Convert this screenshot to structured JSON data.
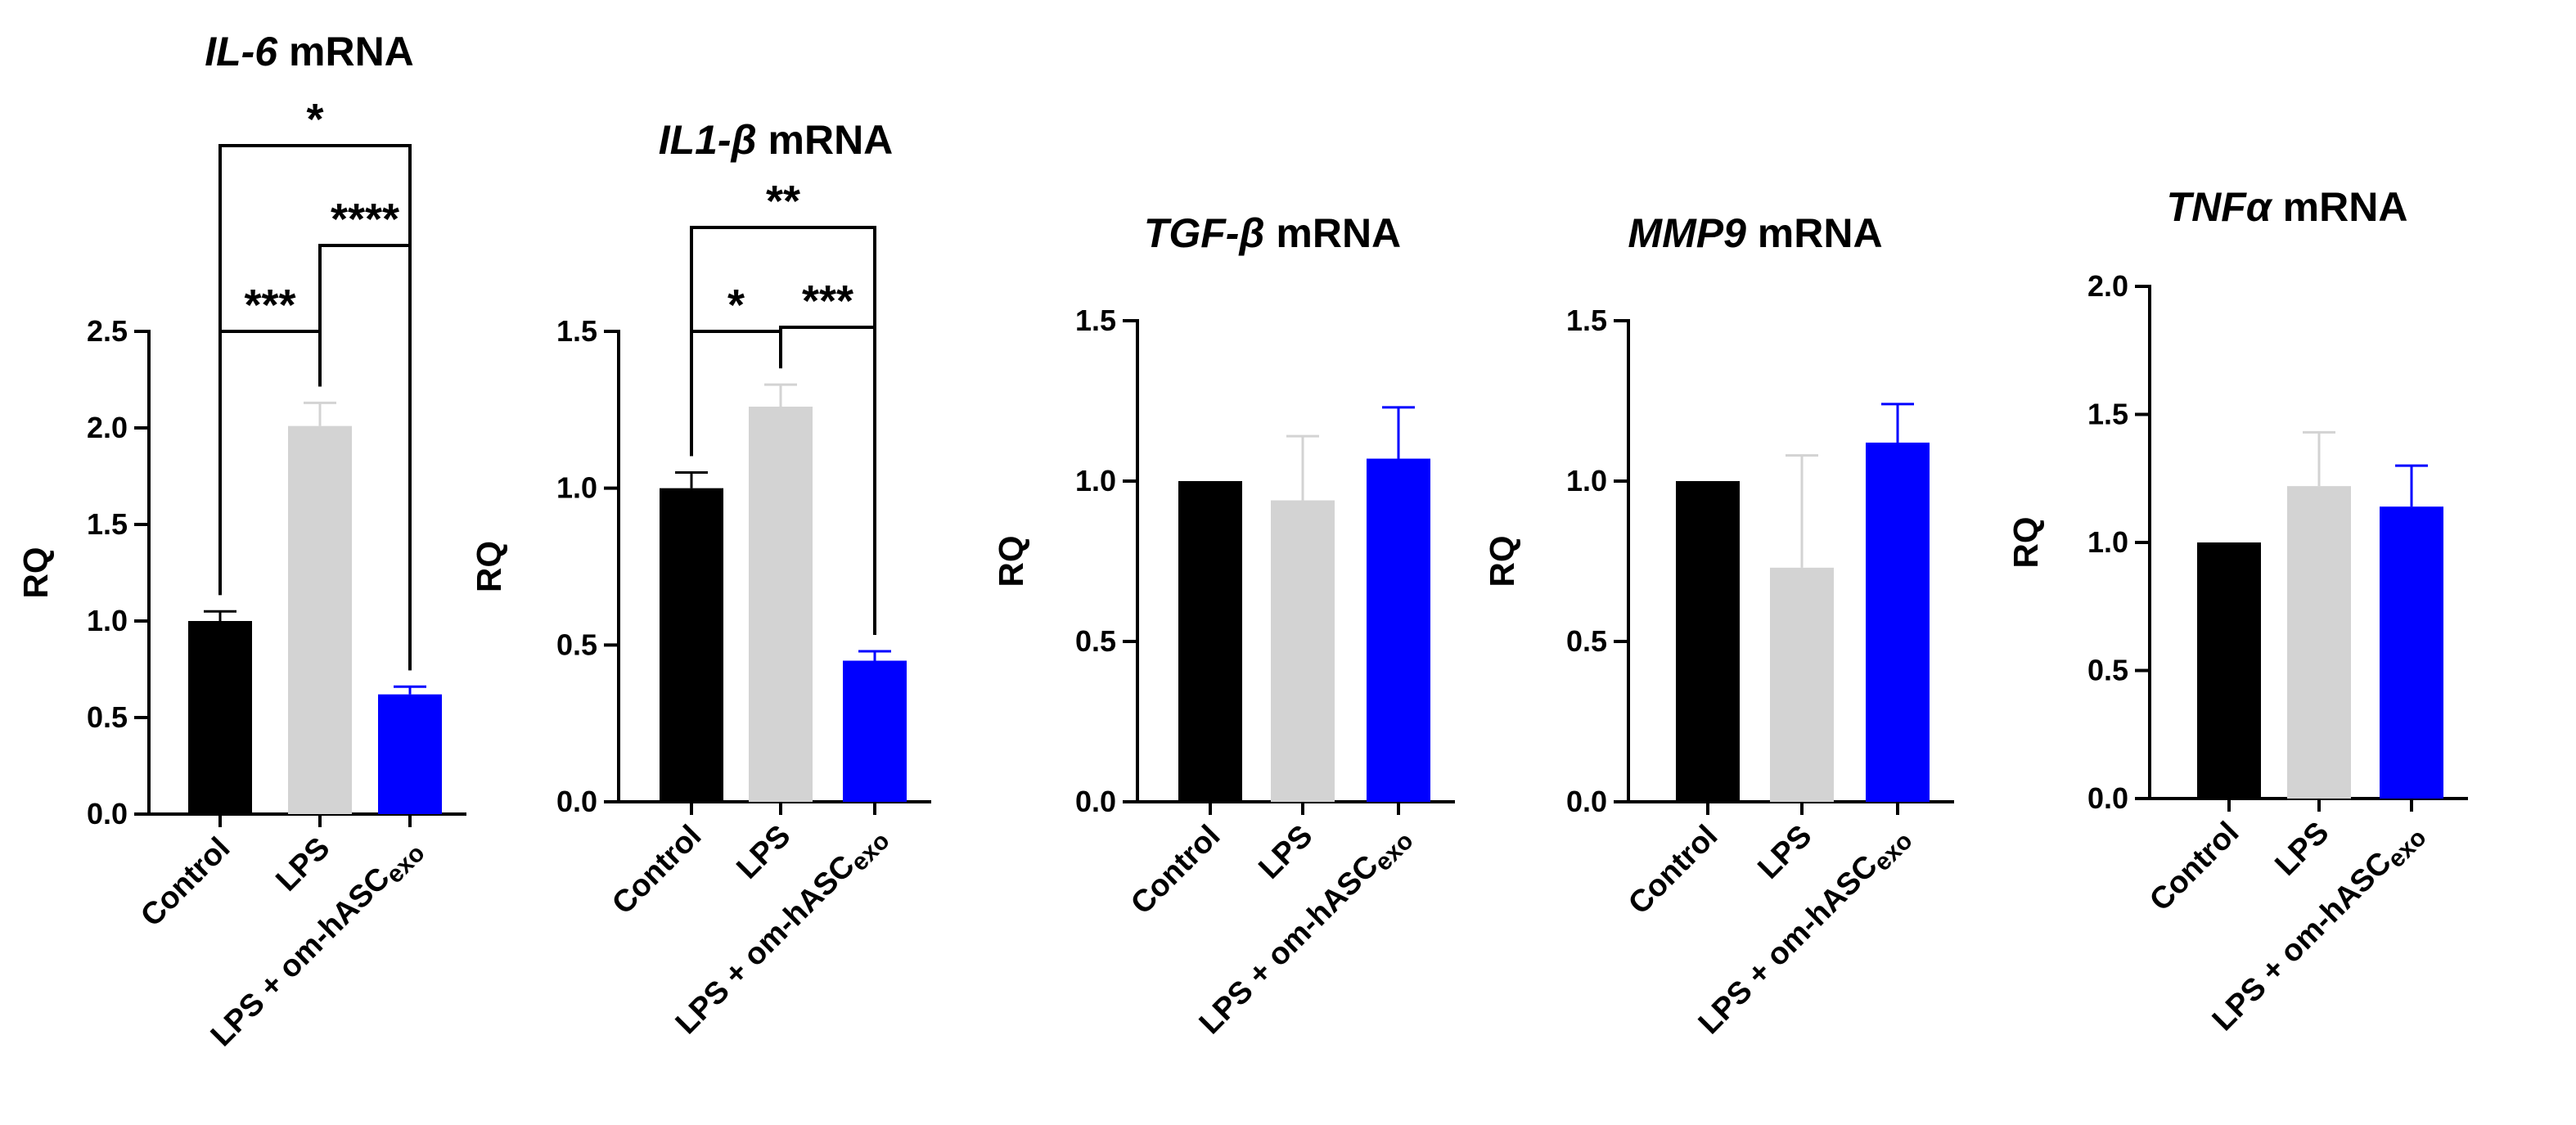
{
  "chart_data": [
    {
      "type": "bar",
      "title_gene": "IL-6",
      "title_suffix": " mRNA",
      "ylabel": "RQ",
      "ylim": [
        0,
        2.5
      ],
      "yticks": [
        "0.0",
        "0.5",
        "1.0",
        "1.5",
        "2.0",
        "2.5"
      ],
      "categories": [
        "Control",
        "LPS",
        "LPS + om-hASC"
      ],
      "category_subscript": [
        "",
        "",
        "exo"
      ],
      "values": [
        1.0,
        2.01,
        0.62
      ],
      "errors": [
        0.05,
        0.12,
        0.04
      ],
      "colors": [
        "#000000",
        "#d3d3d3",
        "#0000ff"
      ],
      "error_colors": [
        "#000000",
        "#d3d3d3",
        "#0000ff"
      ],
      "significance": [
        {
          "from": 0,
          "to": 1,
          "label": "***"
        },
        {
          "from": 1,
          "to": 2,
          "label": "****"
        },
        {
          "from": 0,
          "to": 2,
          "label": "*"
        }
      ]
    },
    {
      "type": "bar",
      "title_gene": "IL1-β",
      "title_suffix": " mRNA",
      "ylabel": "RQ",
      "ylim": [
        0,
        1.5
      ],
      "yticks": [
        "0.0",
        "0.5",
        "1.0",
        "1.5"
      ],
      "categories": [
        "Control",
        "LPS",
        "LPS + om-hASC"
      ],
      "category_subscript": [
        "",
        "",
        "exo"
      ],
      "values": [
        1.0,
        1.26,
        0.45
      ],
      "errors": [
        0.05,
        0.07,
        0.03
      ],
      "colors": [
        "#000000",
        "#d3d3d3",
        "#0000ff"
      ],
      "error_colors": [
        "#000000",
        "#d3d3d3",
        "#0000ff"
      ],
      "significance": [
        {
          "from": 0,
          "to": 1,
          "label": "*"
        },
        {
          "from": 1,
          "to": 2,
          "label": "***"
        },
        {
          "from": 0,
          "to": 2,
          "label": "**"
        }
      ]
    },
    {
      "type": "bar",
      "title_gene": "TGF-β",
      "title_suffix": " mRNA",
      "ylabel": "RQ",
      "ylim": [
        0,
        1.5
      ],
      "yticks": [
        "0.0",
        "0.5",
        "1.0",
        "1.5"
      ],
      "categories": [
        "Control",
        "LPS",
        "LPS + om-hASC"
      ],
      "category_subscript": [
        "",
        "",
        "exo"
      ],
      "values": [
        1.0,
        0.94,
        1.07
      ],
      "errors": [
        0.0,
        0.2,
        0.16
      ],
      "colors": [
        "#000000",
        "#d3d3d3",
        "#0000ff"
      ],
      "error_colors": [
        "#000000",
        "#d3d3d3",
        "#0000ff"
      ],
      "significance": []
    },
    {
      "type": "bar",
      "title_gene": "MMP9",
      "title_suffix": " mRNA",
      "ylabel": "RQ",
      "ylim": [
        0,
        1.5
      ],
      "yticks": [
        "0.0",
        "0.5",
        "1.0",
        "1.5"
      ],
      "categories": [
        "Control",
        "LPS",
        "LPS + om-hASC"
      ],
      "category_subscript": [
        "",
        "",
        "exo"
      ],
      "values": [
        1.0,
        0.73,
        1.12
      ],
      "errors": [
        0.0,
        0.35,
        0.12
      ],
      "colors": [
        "#000000",
        "#d3d3d3",
        "#0000ff"
      ],
      "error_colors": [
        "#000000",
        "#d3d3d3",
        "#0000ff"
      ],
      "significance": []
    },
    {
      "type": "bar",
      "title_gene": "TNFα",
      "title_suffix": " mRNA",
      "ylabel": "RQ",
      "ylim": [
        0,
        2.0
      ],
      "yticks": [
        "0.0",
        "0.5",
        "1.0",
        "1.5",
        "2.0"
      ],
      "categories": [
        "Control",
        "LPS",
        "LPS + om-hASC"
      ],
      "category_subscript": [
        "",
        "",
        "exo"
      ],
      "values": [
        1.0,
        1.22,
        1.14
      ],
      "errors": [
        0.0,
        0.21,
        0.16
      ],
      "colors": [
        "#000000",
        "#d3d3d3",
        "#0000ff"
      ],
      "error_colors": [
        "#000000",
        "#d3d3d3",
        "#0000ff"
      ],
      "significance": []
    }
  ]
}
